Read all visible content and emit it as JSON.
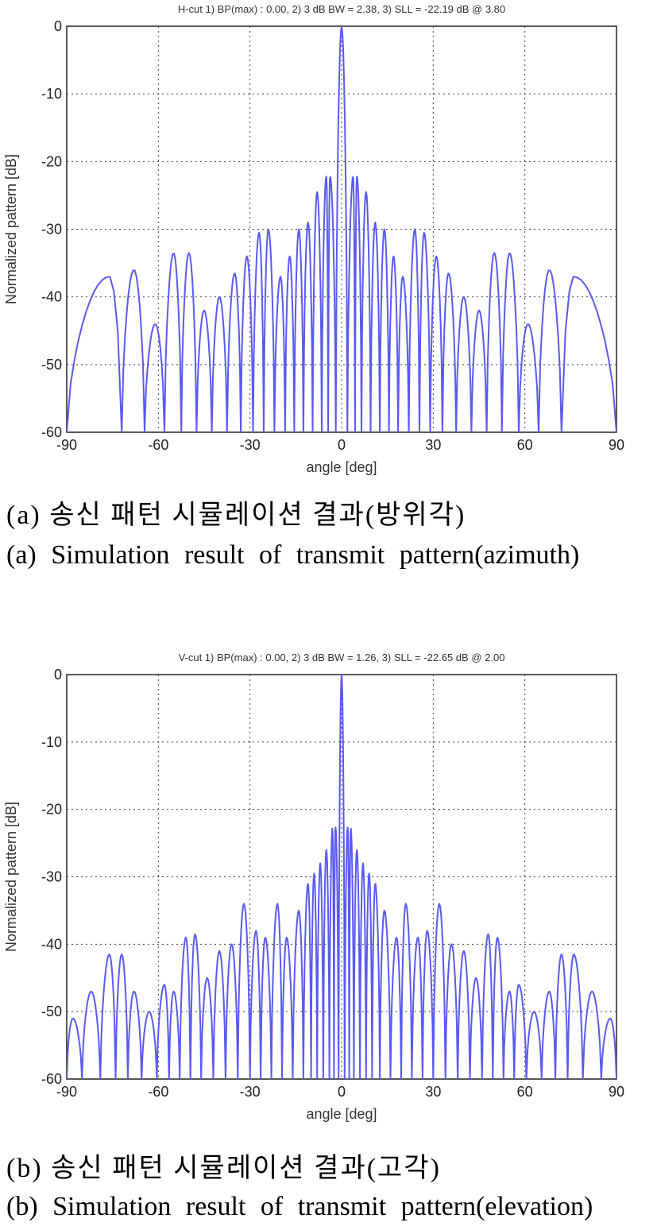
{
  "chart_data": [
    {
      "type": "line",
      "title": "H-cut 1) BP(max) : 0.00, 2) 3 dB BW = 2.38, 3) SLL = -22.19 dB @ 3.80",
      "xlabel": "angle [deg]",
      "ylabel": "Normalized pattern [dB]",
      "xlim": [
        -90,
        90
      ],
      "ylim": [
        -60,
        0
      ],
      "xticks": [
        "-90",
        "-60",
        "-30",
        "0",
        "30",
        "60",
        "90"
      ],
      "yticks": [
        "0",
        "-10",
        "-20",
        "-30",
        "-40",
        "-50",
        "-60"
      ],
      "grid": true,
      "color": "#5a5af0",
      "series": [
        {
          "peaks": [
            [
              -76,
              -37
            ],
            [
              -68,
              -36
            ],
            [
              -61,
              -44
            ],
            [
              -55,
              -33.5
            ],
            [
              -50,
              -33.5
            ],
            [
              -45,
              -42
            ],
            [
              -40,
              -40
            ],
            [
              -35,
              -36.5
            ],
            [
              -31,
              -34
            ],
            [
              -27,
              -30.5
            ],
            [
              -24,
              -30
            ],
            [
              -20,
              -37
            ],
            [
              -17,
              -34
            ],
            [
              -14,
              -30
            ],
            [
              -11,
              -29
            ],
            [
              -8,
              -24.5
            ],
            [
              -5,
              -22.2
            ],
            [
              -3.8,
              -22.19
            ],
            [
              0,
              0
            ],
            [
              3.8,
              -22.19
            ],
            [
              5,
              -22.2
            ],
            [
              8,
              -24.5
            ],
            [
              11,
              -29
            ],
            [
              14,
              -30
            ],
            [
              17,
              -34
            ],
            [
              20,
              -37
            ],
            [
              24,
              -30
            ],
            [
              27,
              -30.5
            ],
            [
              31,
              -34
            ],
            [
              35,
              -36.5
            ],
            [
              40,
              -40
            ],
            [
              45,
              -42
            ],
            [
              50,
              -33.5
            ],
            [
              55,
              -33.5
            ],
            [
              61,
              -44
            ],
            [
              68,
              -36
            ],
            [
              76,
              -37
            ]
          ]
        }
      ],
      "caption_ko": "(a) 송신 패턴 시뮬레이션 결과(방위각)",
      "caption_en": "(a) Simulation result of transmit pattern(azimuth)"
    },
    {
      "type": "line",
      "title": "V-cut 1) BP(max) : 0.00, 2) 3 dB BW = 1.26, 3) SLL = -22.65 dB @ 2.00",
      "xlabel": "angle [deg]",
      "ylabel": "Normalized pattern [dB]",
      "xlim": [
        -90,
        90
      ],
      "ylim": [
        -60,
        0
      ],
      "xticks": [
        "-90",
        "-60",
        "-30",
        "0",
        "30",
        "60",
        "90"
      ],
      "yticks": [
        "0",
        "-10",
        "-20",
        "-30",
        "-40",
        "-50",
        "-60"
      ],
      "grid": true,
      "color": "#5a5af0",
      "series": [
        {
          "peaks": [
            [
              -88,
              -51
            ],
            [
              -82,
              -47
            ],
            [
              -76,
              -41.5
            ],
            [
              -72,
              -41.5
            ],
            [
              -68,
              -47
            ],
            [
              -63,
              -50
            ],
            [
              -58,
              -46
            ],
            [
              -55,
              -47
            ],
            [
              -51,
              -39
            ],
            [
              -48,
              -38.5
            ],
            [
              -44,
              -45
            ],
            [
              -40,
              -41
            ],
            [
              -36,
              -40
            ],
            [
              -32,
              -34
            ],
            [
              -28,
              -38
            ],
            [
              -25,
              -39
            ],
            [
              -21,
              -34
            ],
            [
              -18,
              -39
            ],
            [
              -14,
              -35
            ],
            [
              -11,
              -31
            ],
            [
              -9,
              -29.5
            ],
            [
              -7,
              -28
            ],
            [
              -5,
              -26
            ],
            [
              -3,
              -22.8
            ],
            [
              -2,
              -22.65
            ],
            [
              0,
              0
            ],
            [
              2,
              -22.65
            ],
            [
              3,
              -22.8
            ],
            [
              5,
              -26
            ],
            [
              7,
              -28
            ],
            [
              9,
              -29.5
            ],
            [
              11,
              -31
            ],
            [
              14,
              -35
            ],
            [
              18,
              -39
            ],
            [
              21,
              -34
            ],
            [
              25,
              -39
            ],
            [
              28,
              -38
            ],
            [
              32,
              -34
            ],
            [
              36,
              -40
            ],
            [
              40,
              -41
            ],
            [
              44,
              -45
            ],
            [
              48,
              -38.5
            ],
            [
              51,
              -39
            ],
            [
              55,
              -47
            ],
            [
              58,
              -46
            ],
            [
              63,
              -50
            ],
            [
              68,
              -47
            ],
            [
              72,
              -41.5
            ],
            [
              76,
              -41.5
            ],
            [
              82,
              -47
            ],
            [
              88,
              -51
            ]
          ]
        }
      ],
      "caption_ko": "(b) 송신 패턴 시뮬레이션 결과(고각)",
      "caption_en": "(b) Simulation result of transmit pattern(elevation)"
    }
  ]
}
